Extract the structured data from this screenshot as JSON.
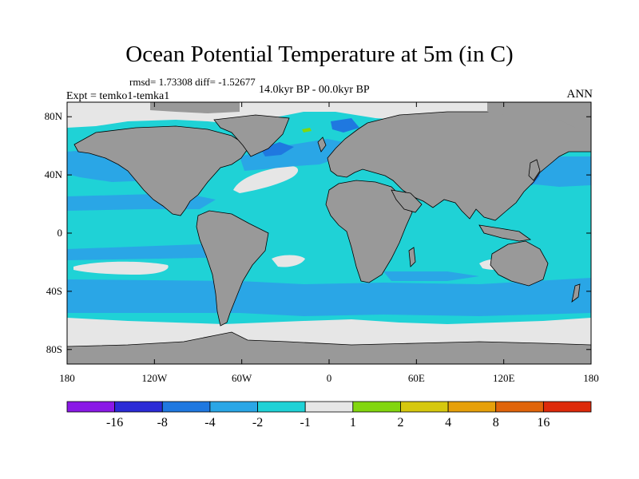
{
  "title": "Ocean Potential Temperature at 5m (in C)",
  "stats": "rmsd= 1.73308 diff= -1.52677",
  "experiment": "Expt = temko1-temka1",
  "period": "14.0kyr BP - 00.0kyr BP",
  "season": "ANN",
  "map": {
    "projection": "cylindrical-equidistant",
    "lon_range": [
      -180,
      180
    ],
    "lat_range": [
      -90,
      90
    ],
    "land_color": "#999999",
    "x_ticks": [
      {
        "lon": -180,
        "label": "180"
      },
      {
        "lon": -120,
        "label": "120W"
      },
      {
        "lon": -60,
        "label": "60W"
      },
      {
        "lon": 0,
        "label": "0"
      },
      {
        "lon": 60,
        "label": "60E"
      },
      {
        "lon": 120,
        "label": "120E"
      },
      {
        "lon": 180,
        "label": "180"
      }
    ],
    "y_ticks": [
      {
        "lat": 80,
        "label": "80N"
      },
      {
        "lat": 40,
        "label": "40N"
      },
      {
        "lat": 0,
        "label": "0"
      },
      {
        "lat": -40,
        "label": "40S"
      },
      {
        "lat": -80,
        "label": "80S"
      }
    ]
  },
  "colorbar": {
    "colors": [
      "#8a19e6",
      "#2b2bd6",
      "#1f78e0",
      "#2aa6e6",
      "#1fd2d6",
      "#e6e6e6",
      "#82d60e",
      "#d6c80e",
      "#e6a00a",
      "#e0640a",
      "#dd2a0a"
    ],
    "labels": [
      "-16",
      "-8",
      "-4",
      "-2",
      "-1",
      "1",
      "2",
      "4",
      "8",
      "16"
    ]
  },
  "field_colors": {
    "bg": "#1fd2d6",
    "light": "#2aa6e6",
    "mid": "#1f78e0",
    "near_zero": "#e6e6e6",
    "warm": "#82d60e"
  }
}
